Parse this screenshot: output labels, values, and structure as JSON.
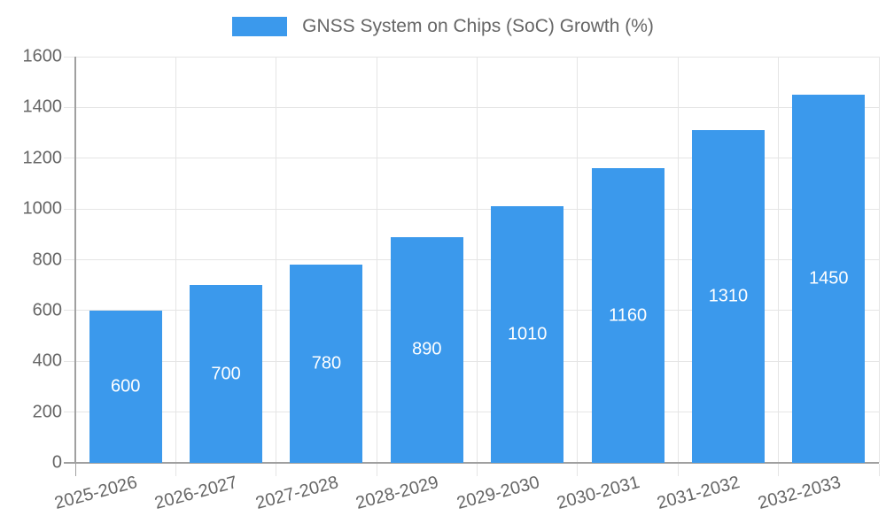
{
  "chart_data": {
    "type": "bar",
    "title": "GNSS System on Chips (SoC) Growth (%)",
    "categories": [
      "2025-2026",
      "2026-2027",
      "2027-2028",
      "2028-2029",
      "2029-2030",
      "2030-2031",
      "2031-2032",
      "2032-2033"
    ],
    "series": [
      {
        "name": "GNSS System on Chips (SoC) Growth (%)",
        "values": [
          600,
          700,
          780,
          890,
          1010,
          1160,
          1310,
          1450
        ]
      }
    ],
    "xlabel": "",
    "ylabel": "",
    "ylim": [
      0,
      1600
    ],
    "ytick_step": 200,
    "yticks": [
      0,
      200,
      400,
      600,
      800,
      1000,
      1200,
      1400,
      1600
    ],
    "grid": true,
    "legend_position": "top",
    "bar_value_labels_inside": true,
    "colors": {
      "bar": "#3B99EC",
      "bar_label_text": "#FFFFFF",
      "axis_line": "#A0A0A0",
      "grid_line": "#E5E5E5",
      "tick_text": "#666666",
      "legend_text": "#666666",
      "background": "#FFFFFF"
    }
  }
}
